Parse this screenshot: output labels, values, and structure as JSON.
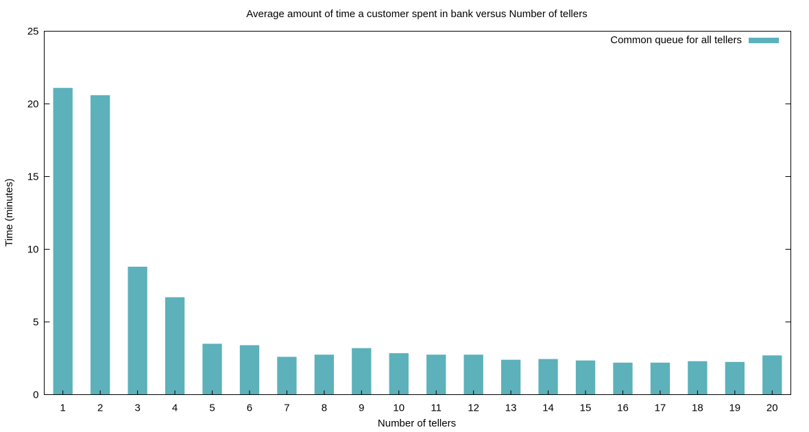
{
  "chart_data": {
    "type": "bar",
    "title": "Average amount of time a customer spent in bank versus Number of tellers",
    "xlabel": "Number of tellers",
    "ylabel": "Time (minutes)",
    "ylim": [
      0,
      25
    ],
    "yticks": [
      0,
      5,
      10,
      15,
      20,
      25
    ],
    "categories": [
      "1",
      "2",
      "3",
      "4",
      "5",
      "6",
      "7",
      "8",
      "9",
      "10",
      "11",
      "12",
      "13",
      "14",
      "15",
      "16",
      "17",
      "18",
      "19",
      "20"
    ],
    "series": [
      {
        "name": "Common queue for all tellers",
        "color": "#5cb1bb",
        "values": [
          21.1,
          20.6,
          8.8,
          6.7,
          3.5,
          3.4,
          2.6,
          2.75,
          3.2,
          2.85,
          2.75,
          2.75,
          2.4,
          2.45,
          2.35,
          2.2,
          2.2,
          2.3,
          2.25,
          2.7
        ]
      }
    ],
    "grid": false,
    "legend_position": "top-right"
  }
}
